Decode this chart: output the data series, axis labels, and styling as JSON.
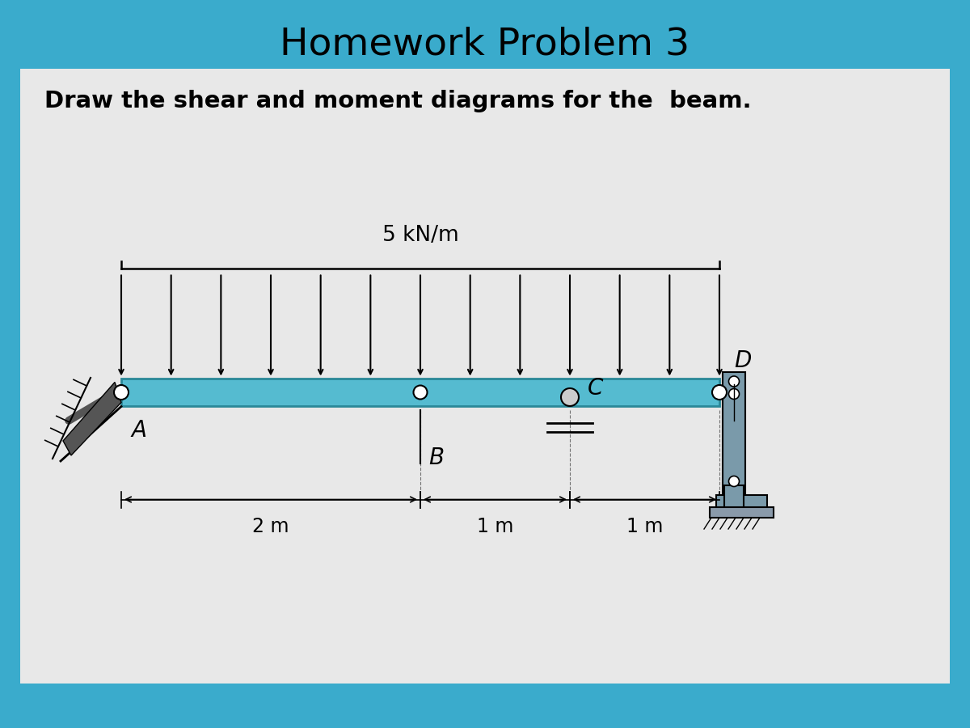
{
  "title": "Homework Problem 3",
  "subtitle": "Draw the shear and moment diagrams for the  beam.",
  "load_label": "5 kN/m",
  "bg_color": "#3aabcc",
  "box_facecolor": "#e8e8e8",
  "beam_color": "#55bbd0",
  "beam_edge": "#2a8898",
  "wall_color": "#8a9a9a",
  "dim_A": "2 m",
  "dim_B": "1 m",
  "dim_C": "1 m",
  "label_A": "A",
  "label_B": "B",
  "label_C": "C",
  "label_D": "D",
  "title_fontsize": 34,
  "subtitle_fontsize": 21,
  "load_fontsize": 19,
  "label_fontsize": 20,
  "dim_fontsize": 17
}
